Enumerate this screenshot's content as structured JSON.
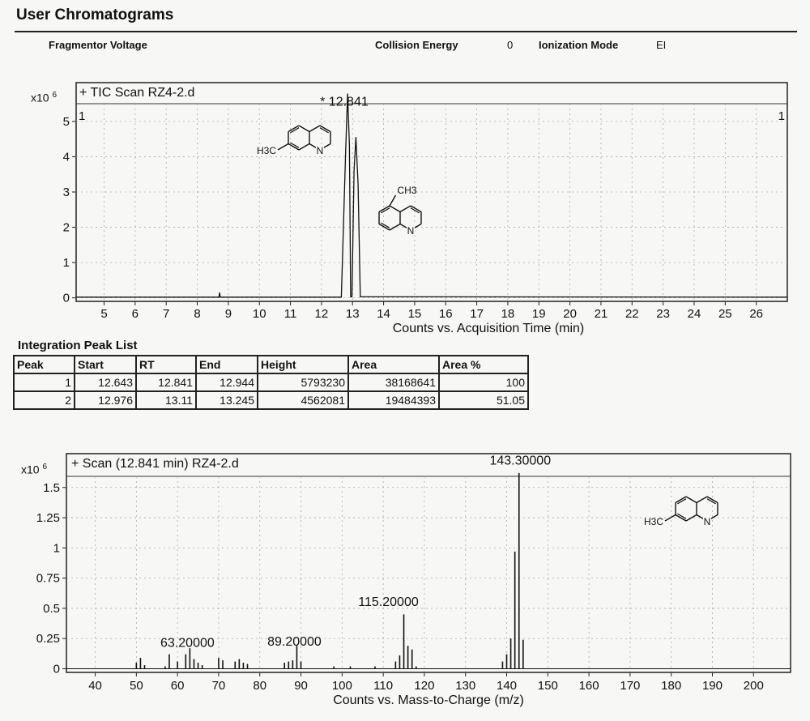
{
  "page": {
    "title": "User Chromatograms",
    "params": {
      "fragmentor_label": "Fragmentor Voltage",
      "collision_label": "Collision Energy",
      "collision_value": "0",
      "ionization_label": "Ionization Mode",
      "ionization_value": "EI"
    }
  },
  "table": {
    "title": "Integration Peak List",
    "headers": [
      "Peak",
      "Start",
      "RT",
      "End",
      "Height",
      "Area",
      "Area %"
    ],
    "rows": [
      [
        "1",
        "12.643",
        "12.841",
        "12.944",
        "5793230",
        "38168641",
        "100"
      ],
      [
        "2",
        "12.976",
        "13.11",
        "13.245",
        "4562081",
        "19484393",
        "51.05"
      ]
    ]
  },
  "chart_data": [
    {
      "type": "line",
      "title": "+ TIC Scan RZ4-2.d",
      "xlabel": "Counts vs. Acquisition Time (min)",
      "ylabel": "",
      "y_multiplier_base": "x10",
      "y_multiplier_exp": "6",
      "xlim": [
        4.1,
        27.0
      ],
      "ylim": [
        -0.1,
        6.1
      ],
      "x_ticks": [
        5,
        6,
        7,
        8,
        9,
        10,
        11,
        12,
        13,
        14,
        15,
        16,
        17,
        18,
        19,
        20,
        21,
        22,
        23,
        24,
        25,
        26
      ],
      "y_ticks": [
        0,
        1,
        2,
        3,
        4,
        5
      ],
      "grid": true,
      "series": [
        {
          "x": [
            4.1,
            8.7,
            8.72,
            8.74,
            12.64,
            12.78,
            12.84,
            12.9,
            12.94,
            12.98,
            13.05,
            13.11,
            13.18,
            13.25,
            27.0
          ],
          "y": [
            0.02,
            0.02,
            0.15,
            0.02,
            0.02,
            4.2,
            5.79,
            4.3,
            0.03,
            0.03,
            3.6,
            4.56,
            3.2,
            0.03,
            0.02
          ]
        }
      ],
      "annotations": [
        {
          "text": "* 12.841",
          "x": 12.841
        },
        {
          "text": "1",
          "position": "top-left"
        },
        {
          "text": "1",
          "position": "top-right"
        }
      ],
      "structures": [
        {
          "substituent": "H3C",
          "heteroatom": "N",
          "compound": "7-methylquinoline"
        },
        {
          "substituent": "CH3",
          "heteroatom": "N",
          "compound": "5-methylquinoline"
        }
      ]
    },
    {
      "type": "bar",
      "title": "+ Scan (12.841 min) RZ4-2.d",
      "xlabel": "Counts vs. Mass-to-Charge (m/z)",
      "ylabel": "",
      "y_multiplier_base": "x10",
      "y_multiplier_exp": "6",
      "xlim": [
        33,
        209
      ],
      "ylim": [
        -0.03,
        1.78
      ],
      "x_ticks": [
        40,
        50,
        60,
        70,
        80,
        90,
        100,
        110,
        120,
        130,
        140,
        150,
        160,
        170,
        180,
        190,
        200
      ],
      "y_ticks": [
        0,
        0.25,
        0.5,
        0.75,
        1,
        1.25,
        1.5
      ],
      "y_tick_labels": [
        "0",
        "0.25",
        "0.5",
        "0.75",
        "1",
        "1.25",
        "1.5"
      ],
      "grid": true,
      "mz": [
        50,
        51,
        52,
        57,
        58,
        60,
        62,
        63,
        64,
        65,
        66,
        70,
        71,
        74,
        75,
        76,
        77,
        86,
        87,
        88,
        89,
        90,
        98,
        102,
        108,
        113,
        114,
        115,
        116,
        117,
        118,
        139,
        140,
        141,
        142,
        143,
        144
      ],
      "intensity": [
        0.05,
        0.09,
        0.03,
        0.02,
        0.12,
        0.06,
        0.12,
        0.17,
        0.08,
        0.05,
        0.03,
        0.09,
        0.07,
        0.06,
        0.08,
        0.05,
        0.04,
        0.05,
        0.06,
        0.07,
        0.19,
        0.06,
        0.02,
        0.02,
        0.02,
        0.06,
        0.11,
        0.45,
        0.19,
        0.16,
        0.02,
        0.06,
        0.12,
        0.25,
        0.97,
        1.62,
        0.24
      ],
      "peak_labels": [
        {
          "text": "63.20000",
          "mz": 63.2
        },
        {
          "text": "89.20000",
          "mz": 89.2
        },
        {
          "text": "115.20000",
          "mz": 115.2
        },
        {
          "text": "143.30000",
          "mz": 143.3
        }
      ],
      "structures": [
        {
          "substituent": "H3C",
          "heteroatom": "N",
          "compound": "7-methylquinoline"
        }
      ]
    }
  ]
}
